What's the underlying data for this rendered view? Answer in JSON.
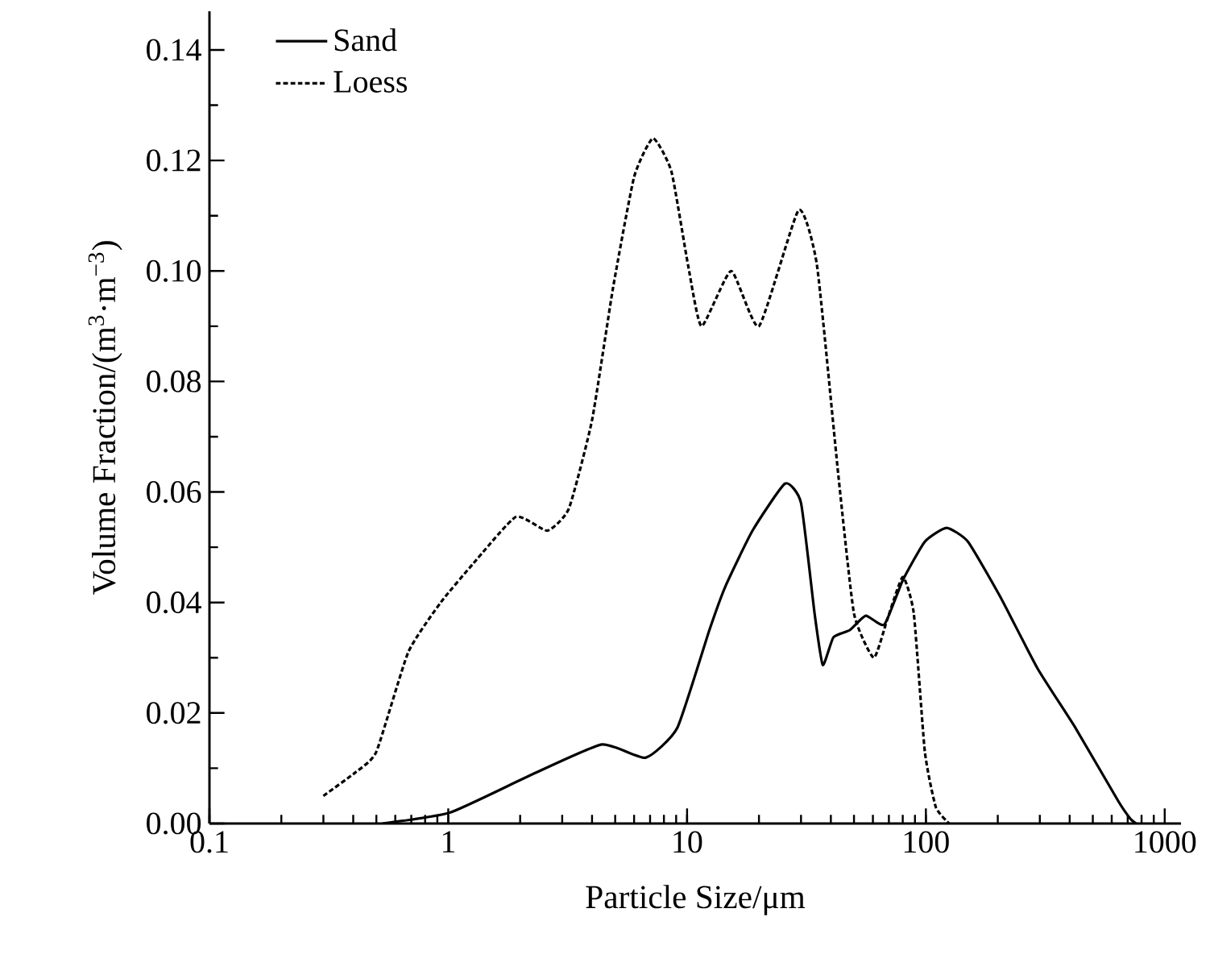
{
  "chart_data": {
    "type": "line",
    "xlabel": "Particle Size/μm",
    "ylabel": "Volume Fraction/(m$^{3}$·m$^{−3}$)",
    "log": "x",
    "xlim": [
      0.1,
      1170
    ],
    "xticks": [
      0.1,
      1,
      10,
      100,
      1000
    ],
    "ylim": [
      0,
      0.147
    ],
    "yticks": [
      {
        "value": 0,
        "label": "0.00"
      },
      {
        "value": 0.02,
        "label": "0.02"
      },
      {
        "value": 0.04,
        "label": "0.04"
      },
      {
        "value": 0.06,
        "label": "0.06"
      },
      {
        "value": 0.08,
        "label": "0.08"
      },
      {
        "value": 0.1,
        "label": "0.10"
      },
      {
        "value": 0.12,
        "label": "0.12"
      },
      {
        "value": 0.14,
        "label": "0.14"
      }
    ],
    "grid": false,
    "legend": "top left",
    "series": [
      {
        "name": "Sand",
        "color": "#000000",
        "line_style": "solid",
        "x": [
          0.53,
          1.02,
          2.2,
          4.4,
          6.7,
          9.1,
          12.4,
          14.5,
          18.8,
          25.7,
          30,
          34.2,
          37,
          41,
          48,
          56,
          67,
          80,
          99,
          122,
          150,
          205,
          294,
          423,
          640,
          720,
          760
        ],
        "values": [
          0,
          0.002,
          0.0087,
          0.0143,
          0.0119,
          0.0173,
          0.035,
          0.043,
          0.053,
          0.0615,
          0.058,
          0.038,
          0.0287,
          0.0337,
          0.035,
          0.0376,
          0.036,
          0.044,
          0.051,
          0.0535,
          0.051,
          0.041,
          0.028,
          0.0173,
          0.004,
          0.0008,
          0
        ]
      },
      {
        "name": "Loess",
        "color": "#000000",
        "line_style": "dashed",
        "x": [
          0.3,
          0.41,
          0.5,
          0.68,
          0.93,
          1.27,
          1.92,
          2.6,
          3.2,
          4.0,
          4.9,
          6.0,
          7.2,
          8.6,
          10.1,
          11.5,
          15.3,
          20,
          29.3,
          35,
          43,
          50,
          60.5,
          69,
          80,
          89,
          99,
          110,
          125
        ],
        "values": [
          0.005,
          0.0093,
          0.013,
          0.031,
          0.04,
          0.047,
          0.0555,
          0.053,
          0.057,
          0.073,
          0.097,
          0.117,
          0.124,
          0.118,
          0.101,
          0.09,
          0.1,
          0.09,
          0.111,
          0.101,
          0.063,
          0.038,
          0.03,
          0.037,
          0.0446,
          0.038,
          0.013,
          0.003,
          0
        ]
      }
    ]
  }
}
